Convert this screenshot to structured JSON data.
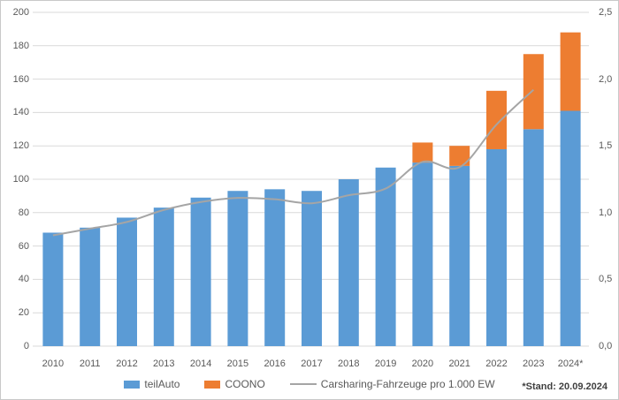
{
  "chart_data": {
    "type": "bar",
    "subtype": "stacked-bars-with-secondary-axis-line",
    "categories": [
      "2010",
      "2011",
      "2012",
      "2013",
      "2014",
      "2015",
      "2016",
      "2017",
      "2018",
      "2019",
      "2020",
      "2021",
      "2022",
      "2023",
      "2024*"
    ],
    "series": [
      {
        "name": "teilAuto",
        "type": "bar",
        "stack": true,
        "color": "#5b9bd5",
        "values": [
          68,
          71,
          77,
          83,
          89,
          93,
          94,
          93,
          100,
          107,
          110,
          108,
          118,
          130,
          141
        ]
      },
      {
        "name": "COONO",
        "type": "bar",
        "stack": true,
        "color": "#ed7d31",
        "values": [
          0,
          0,
          0,
          0,
          0,
          0,
          0,
          0,
          0,
          0,
          12,
          12,
          35,
          45,
          47
        ]
      },
      {
        "name": "Carsharing-Fahrzeuge pro 1.000 EW",
        "type": "line",
        "axis": "right",
        "color": "#a5a5a5",
        "smooth": true,
        "values": [
          0.83,
          0.88,
          0.93,
          1.02,
          1.08,
          1.11,
          1.1,
          1.07,
          1.13,
          1.18,
          1.38,
          1.34,
          1.66,
          1.92,
          null
        ]
      }
    ],
    "left_axis": {
      "min": 0,
      "max": 200,
      "step": 20,
      "tick_labels": [
        "0",
        "20",
        "40",
        "60",
        "80",
        "100",
        "120",
        "140",
        "160",
        "180",
        "200"
      ]
    },
    "right_axis": {
      "min": 0,
      "max": 2.5,
      "step": 0.5,
      "tick_labels": [
        "0,0",
        "0,5",
        "1,0",
        "1,5",
        "2,0",
        "2,5"
      ]
    },
    "grid": true,
    "legend_position": "bottom"
  },
  "footnote": "*Stand: 20.09.2024",
  "colors": {
    "grid": "#d9d9d9",
    "axis_text": "#595959",
    "background": "#ffffff",
    "border": "#c9c9c9",
    "teilauto_blue": "#5b9bd5",
    "coono_orange": "#ed7d31",
    "line_gray": "#a5a5a5"
  }
}
